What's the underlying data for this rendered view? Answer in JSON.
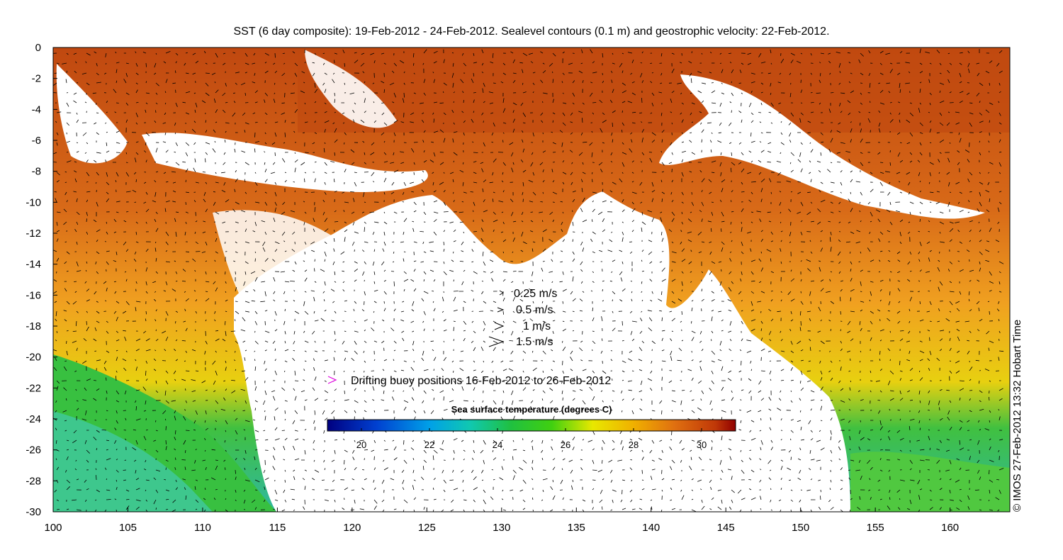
{
  "title": "SST (6 day composite): 19-Feb-2012 - 24-Feb-2012. Sealevel contours (0.1 m) and geostrophic velocity: 22-Feb-2012.",
  "axes": {
    "x_ticks": [
      "100",
      "105",
      "110",
      "115",
      "120",
      "125",
      "130",
      "135",
      "140",
      "145",
      "150",
      "155",
      "160"
    ],
    "y_ticks": [
      "0",
      "-2",
      "-4",
      "-6",
      "-8",
      "-10",
      "-12",
      "-14",
      "-16",
      "-18",
      "-20",
      "-22",
      "-24",
      "-26",
      "-28",
      "-30"
    ],
    "lon_range": [
      100,
      164
    ],
    "lat_range": [
      -30,
      0
    ]
  },
  "velocity_legend": [
    {
      "label": "0.25 m/s",
      "speed": 0.25
    },
    {
      "label": "0.5 m/s",
      "speed": 0.5
    },
    {
      "label": "1 m/s",
      "speed": 1
    },
    {
      "label": "1.5 m/s",
      "speed": 1.5
    }
  ],
  "buoy_legend": {
    "label": "Drifting buoy positions 16-Feb-2012 to 26-Feb-2012",
    "marker_color": "#e000e0"
  },
  "colorbar": {
    "title": "Sea surface temperature (degrees C)",
    "ticks": [
      "20",
      "22",
      "24",
      "26",
      "28",
      "30"
    ],
    "range": [
      19,
      31
    ]
  },
  "credit": "© IMOS 27-Feb-2012 13:32 Hobart Time",
  "colors": {
    "land": "#ffffff",
    "warm_sst": "#c84a10",
    "mid_sst": "#f0a020",
    "cool_sst": "#40c040",
    "cold_sst": "#30c0c0"
  }
}
